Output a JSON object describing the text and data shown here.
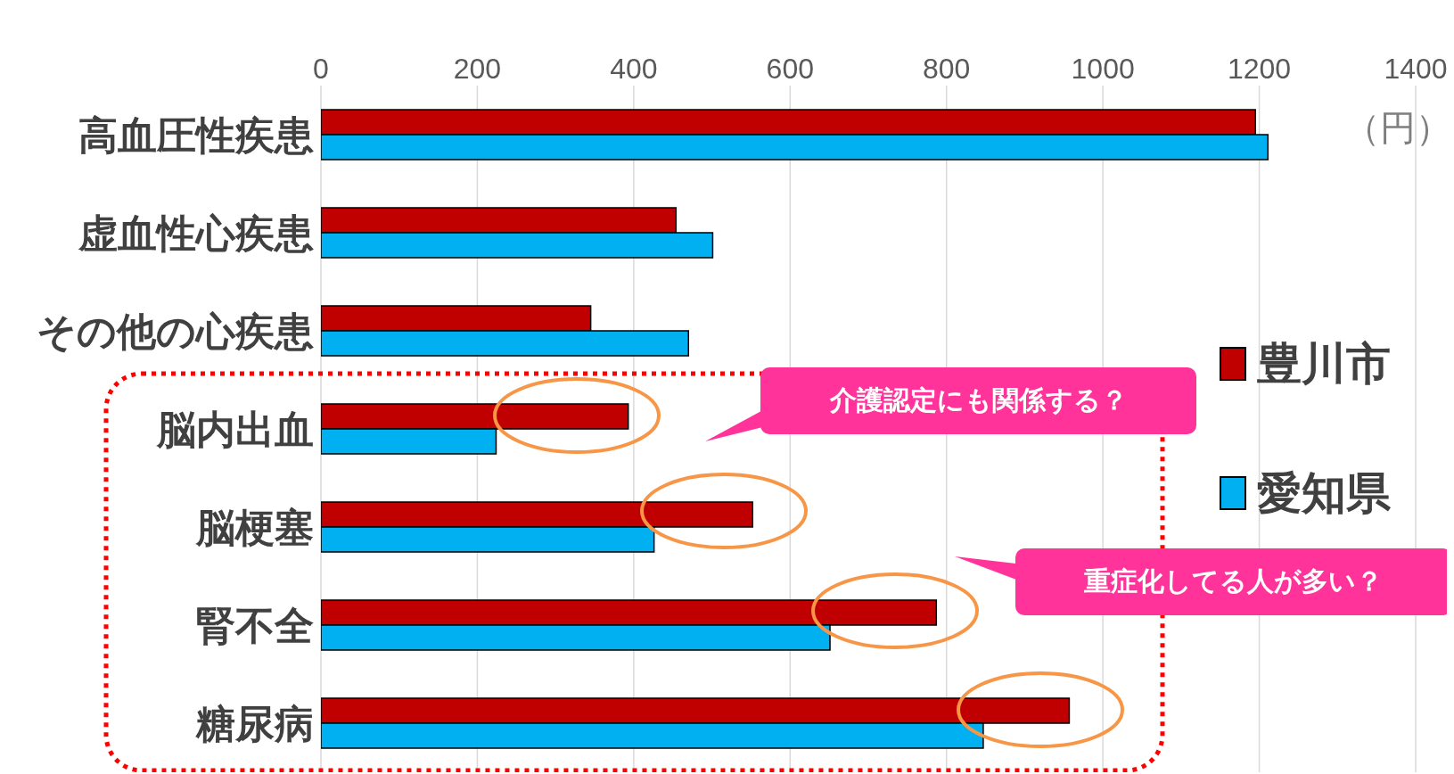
{
  "chart_data": {
    "type": "bar",
    "orientation": "horizontal",
    "xlabel": "（円）",
    "categories": [
      "高血圧性疾患",
      "虚血性心疾患",
      "その他の心疾患",
      "脳内出血",
      "脳梗塞",
      "腎不全",
      "糖尿病"
    ],
    "series": [
      {
        "name": "豊川市",
        "color": "#c00000",
        "values": [
          1195,
          454,
          345,
          393,
          552,
          787,
          957
        ]
      },
      {
        "name": "愛知県",
        "color": "#00b0f0",
        "values": [
          1211,
          501,
          470,
          224,
          426,
          651,
          847
        ]
      }
    ],
    "xlim": [
      0,
      1400
    ],
    "xticks": [
      0,
      200,
      400,
      600,
      800,
      1000,
      1200,
      1400
    ],
    "grid": "x",
    "legend": "right",
    "annotations": [
      "介護認定にも関係する？",
      "重症化してる人が多い？"
    ]
  }
}
